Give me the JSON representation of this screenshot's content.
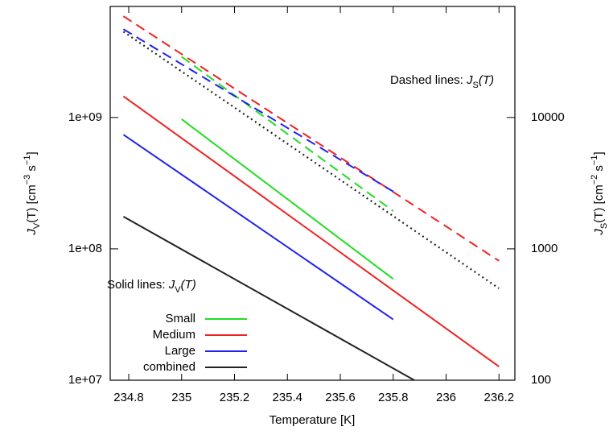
{
  "chart_data": {
    "type": "line",
    "xlabel": "Temperature [K]",
    "ylabel": [
      "J",
      "V",
      "(T) [cm",
      "−3",
      " s",
      "−1",
      "]"
    ],
    "y2label": [
      "J",
      "S",
      "(T) [cm",
      "−2",
      " s",
      "−1",
      "]"
    ],
    "annotations": [
      [
        "Dashed lines: ",
        "J",
        "S",
        "(T)"
      ],
      [
        "Solid lines: ",
        "J",
        "V",
        "(T)"
      ]
    ],
    "xlim": [
      234.73,
      236.26
    ],
    "xticks": [
      234.8,
      235,
      235.2,
      235.4,
      235.6,
      235.8,
      236,
      236.2
    ],
    "ylim": [
      10000000,
      7000000000
    ],
    "yticks": [
      {
        "value": 10000000,
        "label": "1e+07"
      },
      {
        "value": 100000000,
        "label": "1e+08"
      },
      {
        "value": 1000000000,
        "label": "1e+09"
      }
    ],
    "y2lim": [
      100,
      70000
    ],
    "y2ticks": [
      100,
      1000,
      10000
    ],
    "ylog": true,
    "y2log": true,
    "legend": "lower left",
    "series": [
      {
        "name": "Small",
        "color": "#22dd22",
        "dash": "solid",
        "x": [
          235.0,
          235.8
        ],
        "values": [
          970000000,
          59000000
        ]
      },
      {
        "name": "Medium",
        "color": "#ee2222",
        "dash": "solid",
        "x": [
          234.78,
          236.2
        ],
        "values": [
          1450000000,
          12700000
        ]
      },
      {
        "name": "Large",
        "color": "#2222ee",
        "dash": "solid",
        "x": [
          234.78,
          235.8
        ],
        "values": [
          740000000,
          29000000
        ]
      },
      {
        "name": "combined",
        "color": "#222222",
        "dash": "solid",
        "x": [
          234.78,
          235.88
        ],
        "values": [
          176000000,
          10000000
        ]
      },
      {
        "color": "#22dd22",
        "dash": "dashed",
        "axis": "y2",
        "x": [
          235.0,
          235.8
        ],
        "values": [
          29000,
          1940
        ]
      },
      {
        "color": "#ee2222",
        "dash": "dashed",
        "axis": "y2",
        "x": [
          234.78,
          236.2
        ],
        "values": [
          59000,
          810
        ]
      },
      {
        "color": "#2222ee",
        "dash": "dashed",
        "axis": "y2",
        "x": [
          234.78,
          235.8
        ],
        "values": [
          47000,
          2730
        ]
      },
      {
        "color": "#222222",
        "dash": "dotted",
        "axis": "y2",
        "x": [
          234.78,
          236.2
        ],
        "values": [
          45000,
          500
        ]
      }
    ]
  }
}
